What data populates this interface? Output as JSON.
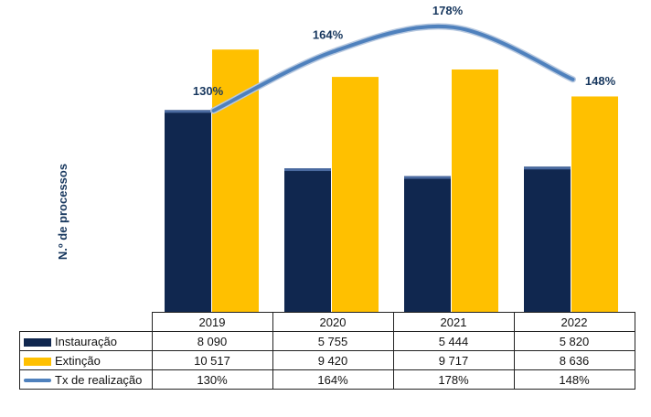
{
  "chart_data": {
    "type": "bar",
    "categories": [
      "2019",
      "2020",
      "2021",
      "2022"
    ],
    "series": [
      {
        "name": "Instauração",
        "type": "bar",
        "color": "#10274f",
        "values": [
          8090,
          5755,
          5444,
          5820
        ],
        "labels": [
          "8 090",
          "5 755",
          "5 444",
          "5 820"
        ]
      },
      {
        "name": "Extinção",
        "type": "bar",
        "color": "#ffc000",
        "values": [
          10517,
          9420,
          9717,
          8636
        ],
        "labels": [
          "10 517",
          "9 420",
          "9 717",
          "8 636"
        ]
      },
      {
        "name": "Tx de realização",
        "type": "line",
        "color": "#4f81bd",
        "values": [
          130,
          164,
          178,
          148
        ],
        "labels": [
          "130%",
          "164%",
          "178%",
          "148%"
        ]
      }
    ],
    "ylabel": "N.º de processos",
    "ylim": [
      0,
      11000
    ],
    "secondary_ylim": [
      0,
      200
    ],
    "grid": false,
    "legend": "data-table"
  }
}
